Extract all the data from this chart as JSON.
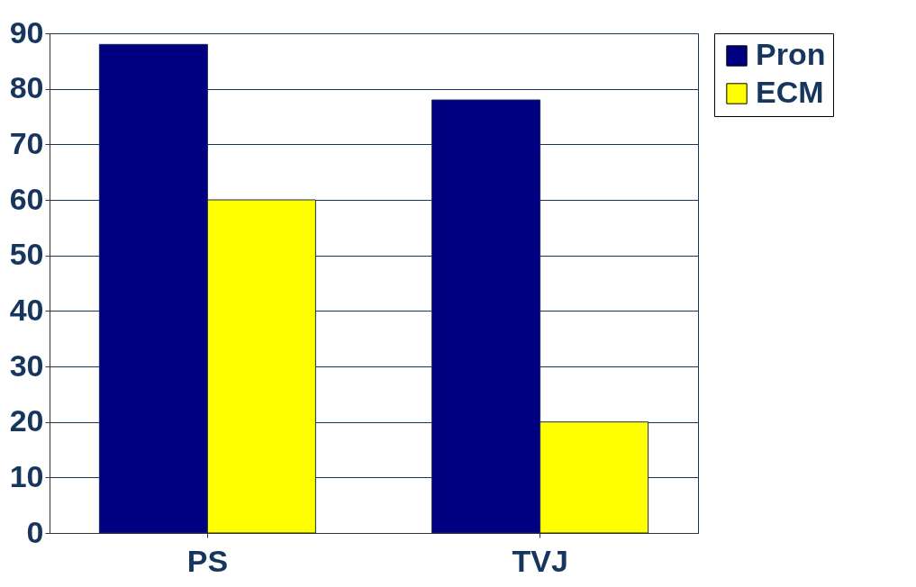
{
  "chart_data": {
    "type": "bar",
    "categories": [
      "PS",
      "TVJ"
    ],
    "series": [
      {
        "name": "Pron",
        "color": "#000080",
        "values": [
          88,
          78
        ]
      },
      {
        "name": "ECM",
        "color": "#ffff00",
        "values": [
          60,
          20
        ]
      }
    ],
    "ylim": [
      0,
      90
    ],
    "yticks": [
      0,
      10,
      20,
      30,
      40,
      50,
      60,
      70,
      80,
      90
    ],
    "grid": "y",
    "legend": "right"
  }
}
